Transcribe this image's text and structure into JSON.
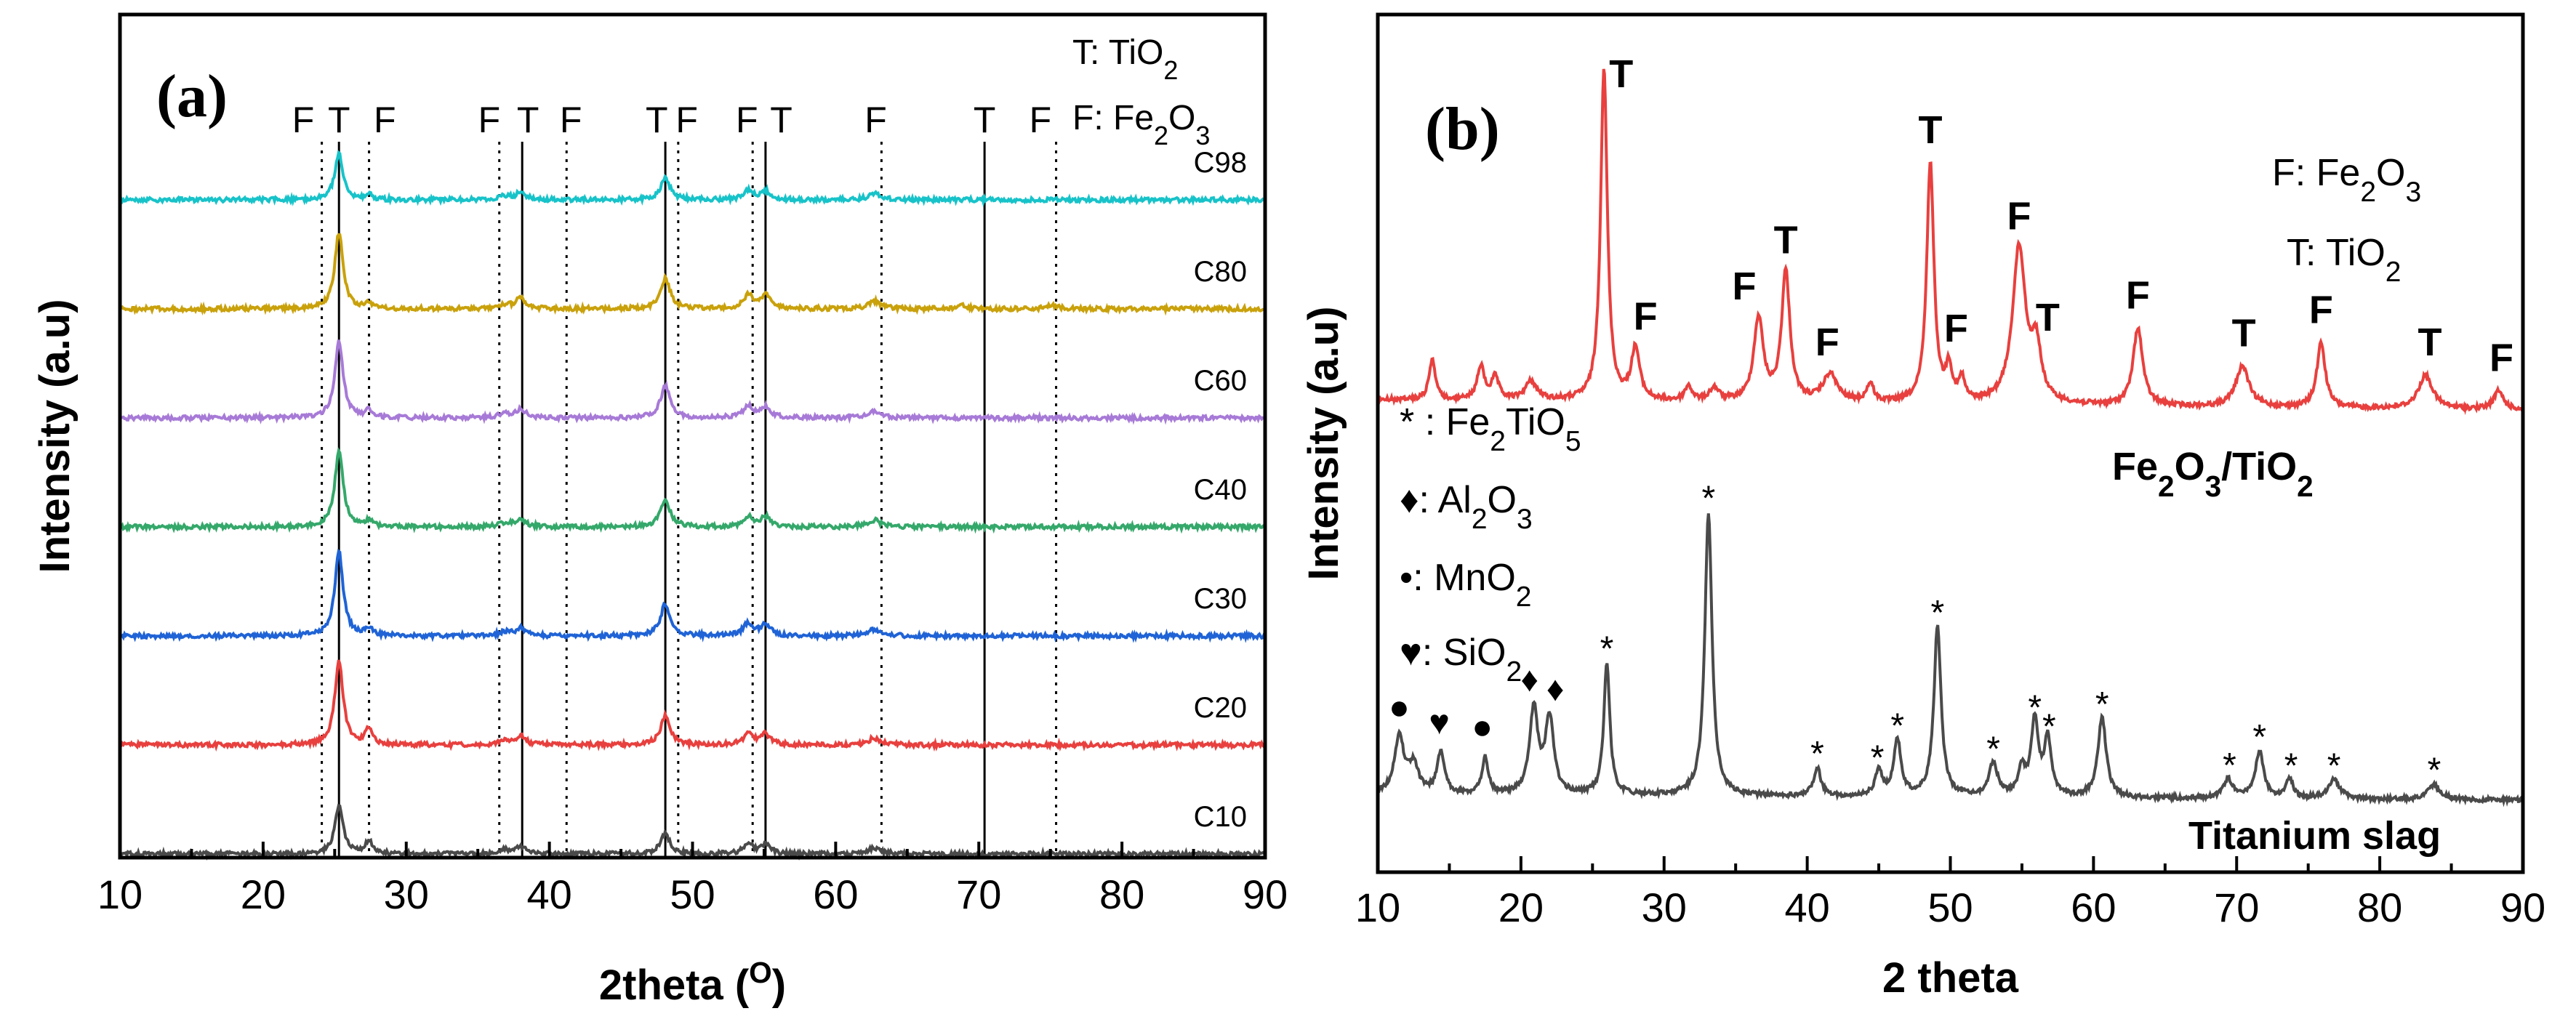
{
  "chart_data": [
    {
      "type": "line",
      "panel_label": "(a)",
      "xlabel": "2theta (",
      "xlabel_sup": "O",
      "xlabel_end": ")",
      "ylabel": "Intensity (a.u)",
      "xlim": [
        10,
        90
      ],
      "xticks": [
        10,
        20,
        30,
        40,
        50,
        60,
        70,
        80,
        90
      ],
      "legend": [
        {
          "text": "T: TiO",
          "sub": "2"
        },
        {
          "text": "F: Fe",
          "sub": "2",
          "text2": "O",
          "sub2": "3"
        }
      ],
      "reference_lines": [
        {
          "x": 24.1,
          "style": "dotted"
        },
        {
          "x": 25.3,
          "style": "solid"
        },
        {
          "x": 27.4,
          "style": "dotted"
        },
        {
          "x": 36.5,
          "style": "dotted"
        },
        {
          "x": 38.1,
          "style": "solid"
        },
        {
          "x": 41.2,
          "style": "dotted"
        },
        {
          "x": 48.1,
          "style": "solid"
        },
        {
          "x": 49.0,
          "style": "dotted"
        },
        {
          "x": 54.2,
          "style": "dotted"
        },
        {
          "x": 55.1,
          "style": "solid"
        },
        {
          "x": 63.2,
          "style": "dotted"
        },
        {
          "x": 70.4,
          "style": "solid"
        },
        {
          "x": 75.4,
          "style": "dotted"
        }
      ],
      "peak_labels": [
        {
          "x": 22.8,
          "text": "F"
        },
        {
          "x": 25.3,
          "text": "T"
        },
        {
          "x": 28.5,
          "text": "F"
        },
        {
          "x": 35.8,
          "text": "F"
        },
        {
          "x": 38.5,
          "text": "T"
        },
        {
          "x": 41.5,
          "text": "F"
        },
        {
          "x": 47.5,
          "text": "T"
        },
        {
          "x": 49.6,
          "text": "F"
        },
        {
          "x": 53.8,
          "text": "F"
        },
        {
          "x": 56.2,
          "text": "T"
        },
        {
          "x": 62.8,
          "text": "F"
        },
        {
          "x": 70.4,
          "text": "T"
        },
        {
          "x": 74.3,
          "text": "F"
        }
      ],
      "series": [
        {
          "name": "C98",
          "color": "#17c3c9",
          "baseline": 0.0,
          "peaks": [
            [
              25.3,
              60,
              0.35
            ],
            [
              27.4,
              6,
              0.3
            ],
            [
              36.9,
              5,
              0.5
            ],
            [
              38.0,
              9,
              0.4
            ],
            [
              48.1,
              28,
              0.4
            ],
            [
              53.9,
              12,
              0.4
            ],
            [
              55.1,
              11,
              0.4
            ],
            [
              62.7,
              8,
              0.5
            ]
          ]
        },
        {
          "name": "C80",
          "color": "#c9a10b",
          "baseline": 1.0,
          "peaks": [
            [
              25.3,
              100,
              0.35
            ],
            [
              27.4,
              6,
              0.3
            ],
            [
              36.9,
              5,
              0.5
            ],
            [
              38.0,
              14,
              0.4
            ],
            [
              48.1,
              40,
              0.4
            ],
            [
              53.9,
              18,
              0.4
            ],
            [
              55.1,
              17,
              0.4
            ],
            [
              62.7,
              10,
              0.5
            ],
            [
              68.8,
              4,
              0.5
            ],
            [
              75.1,
              4,
              0.5
            ]
          ]
        },
        {
          "name": "C60",
          "color": "#a77ad7",
          "baseline": 2.0,
          "peaks": [
            [
              25.3,
              100,
              0.35
            ],
            [
              27.4,
              9,
              0.3
            ],
            [
              36.9,
              5,
              0.5
            ],
            [
              38.0,
              11,
              0.4
            ],
            [
              48.1,
              42,
              0.4
            ],
            [
              53.9,
              15,
              0.4
            ],
            [
              55.1,
              14,
              0.4
            ],
            [
              62.7,
              9,
              0.5
            ]
          ]
        },
        {
          "name": "C40",
          "color": "#34a86a",
          "baseline": 3.0,
          "peaks": [
            [
              25.3,
              100,
              0.35
            ],
            [
              27.4,
              8,
              0.3
            ],
            [
              36.9,
              5,
              0.5
            ],
            [
              38.0,
              10,
              0.4
            ],
            [
              48.1,
              36,
              0.4
            ],
            [
              53.9,
              14,
              0.4
            ],
            [
              55.1,
              13,
              0.4
            ],
            [
              62.7,
              9,
              0.5
            ]
          ]
        },
        {
          "name": "C30",
          "color": "#1f63d6",
          "baseline": 4.0,
          "peaks": [
            [
              25.3,
              110,
              0.35
            ],
            [
              27.4,
              10,
              0.3
            ],
            [
              36.9,
              5,
              0.5
            ],
            [
              38.0,
              10,
              0.4
            ],
            [
              48.1,
              42,
              0.4
            ],
            [
              53.9,
              17,
              0.4
            ],
            [
              55.1,
              15,
              0.4
            ],
            [
              62.7,
              9,
              0.5
            ]
          ]
        },
        {
          "name": "C20",
          "color": "#e8403e",
          "baseline": 5.0,
          "peaks": [
            [
              25.3,
              110,
              0.35
            ],
            [
              27.4,
              22,
              0.3
            ],
            [
              36.9,
              5,
              0.5
            ],
            [
              38.0,
              11,
              0.4
            ],
            [
              48.1,
              38,
              0.4
            ],
            [
              53.9,
              15,
              0.4
            ],
            [
              55.1,
              14,
              0.4
            ],
            [
              62.7,
              9,
              0.5
            ]
          ]
        },
        {
          "name": "C10",
          "color": "#4a4a4a",
          "baseline": 6.0,
          "peaks": [
            [
              25.3,
              62,
              0.35
            ],
            [
              27.4,
              18,
              0.3
            ],
            [
              36.9,
              5,
              0.5
            ],
            [
              38.0,
              9,
              0.4
            ],
            [
              48.1,
              26,
              0.4
            ],
            [
              53.9,
              13,
              0.4
            ],
            [
              55.1,
              12,
              0.4
            ],
            [
              62.7,
              8,
              0.5
            ]
          ]
        }
      ]
    },
    {
      "type": "line",
      "panel_label": "(b)",
      "xlabel": "2 theta",
      "ylabel": "Intensity (a.u)",
      "xlim": [
        10,
        90
      ],
      "xticks": [
        10,
        20,
        30,
        40,
        50,
        60,
        70,
        80,
        90
      ],
      "legend_top": [
        {
          "text": "F: Fe",
          "sub": "2",
          "text2": "O",
          "sub2": "3"
        },
        {
          "text": "T: TiO",
          "sub": "2"
        }
      ],
      "legend_bottom": [
        {
          "sym": "*",
          "text": " : Fe",
          "sub": "2",
          "text2": "TiO",
          "sub2": "5"
        },
        {
          "sym": "♦",
          "text": ": Al",
          "sub": "2",
          "text2": "O",
          "sub2": "3"
        },
        {
          "sym": "•",
          "text": ": MnO",
          "sub": "2"
        },
        {
          "sym": "♥",
          "text": ": SiO",
          "sub": "2"
        }
      ],
      "series": [
        {
          "name": "Fe2O3/TiO2",
          "label": "Fe",
          "label_sub1": "2",
          "label_mid": "O",
          "label_sub2": "3",
          "label_end": "/TiO",
          "label_sub3": "2",
          "color": "#e8403e",
          "peaks": [
            [
              13.8,
              22,
              0.25
            ],
            [
              17.2,
              18,
              0.3
            ],
            [
              18.2,
              12,
              0.3
            ],
            [
              20.7,
              10,
              0.5
            ],
            [
              25.8,
              180,
              0.28
            ],
            [
              28.0,
              28,
              0.35
            ],
            [
              31.7,
              8,
              0.3
            ],
            [
              33.5,
              7,
              0.4
            ],
            [
              36.6,
              45,
              0.4
            ],
            [
              38.5,
              70,
              0.35
            ],
            [
              41.6,
              15,
              0.6
            ],
            [
              44.4,
              10,
              0.3
            ],
            [
              48.6,
              130,
              0.3
            ],
            [
              49.9,
              18,
              0.25
            ],
            [
              50.8,
              12,
              0.25
            ],
            [
              54.8,
              84,
              0.55
            ],
            [
              56.0,
              28,
              0.4
            ],
            [
              63.1,
              42,
              0.4
            ],
            [
              70.4,
              22,
              0.55
            ],
            [
              75.9,
              35,
              0.35
            ],
            [
              83.2,
              18,
              0.6
            ],
            [
              88.3,
              10,
              0.4
            ]
          ],
          "peak_labels": [
            {
              "x": 27.0,
              "text": "T"
            },
            {
              "x": 28.7,
              "text": "F"
            },
            {
              "x": 35.6,
              "text": "F"
            },
            {
              "x": 38.5,
              "text": "T"
            },
            {
              "x": 41.4,
              "text": "F"
            },
            {
              "x": 48.6,
              "text": "T"
            },
            {
              "x": 50.4,
              "text": "F"
            },
            {
              "x": 54.8,
              "text": "F"
            },
            {
              "x": 56.8,
              "text": "T"
            },
            {
              "x": 63.1,
              "text": "F"
            },
            {
              "x": 70.5,
              "text": "T"
            },
            {
              "x": 75.9,
              "text": "F"
            },
            {
              "x": 83.5,
              "text": "T"
            },
            {
              "x": 88.5,
              "text": "F"
            }
          ]
        },
        {
          "name": "Titanium slag",
          "label": "Titanium slag",
          "color": "#4a4a4a",
          "peaks": [
            [
              11.5,
              30,
              0.4
            ],
            [
              12.5,
              15,
              0.4
            ],
            [
              14.4,
              22,
              0.3
            ],
            [
              17.5,
              20,
              0.25
            ],
            [
              20.9,
              45,
              0.35
            ],
            [
              22.0,
              40,
              0.35
            ],
            [
              26.0,
              70,
              0.25
            ],
            [
              33.1,
              150,
              0.3
            ],
            [
              40.7,
              15,
              0.3
            ],
            [
              45.0,
              13,
              0.3
            ],
            [
              46.3,
              30,
              0.3
            ],
            [
              49.1,
              90,
              0.3
            ],
            [
              53.0,
              18,
              0.35
            ],
            [
              55.0,
              14,
              0.3
            ],
            [
              55.9,
              40,
              0.3
            ],
            [
              56.8,
              30,
              0.3
            ],
            [
              60.6,
              42,
              0.35
            ],
            [
              69.4,
              10,
              0.4
            ],
            [
              71.6,
              25,
              0.35
            ],
            [
              73.7,
              10,
              0.3
            ],
            [
              76.8,
              10,
              0.5
            ],
            [
              83.8,
              8,
              0.5
            ]
          ],
          "peak_markers": [
            {
              "x": 11.5,
              "sym": "●"
            },
            {
              "x": 14.3,
              "sym": "♥"
            },
            {
              "x": 17.3,
              "sym": "●"
            },
            {
              "x": 20.6,
              "sym": "♦"
            },
            {
              "x": 22.4,
              "sym": "♦"
            },
            {
              "x": 26.0,
              "sym": "*"
            },
            {
              "x": 33.1,
              "sym": "*"
            },
            {
              "x": 40.7,
              "sym": "*"
            },
            {
              "x": 44.9,
              "sym": "*"
            },
            {
              "x": 46.3,
              "sym": "*"
            },
            {
              "x": 49.1,
              "sym": "*"
            },
            {
              "x": 53.0,
              "sym": "*"
            },
            {
              "x": 55.9,
              "sym": "*"
            },
            {
              "x": 56.9,
              "sym": "*"
            },
            {
              "x": 60.6,
              "sym": "*"
            },
            {
              "x": 69.5,
              "sym": "*"
            },
            {
              "x": 71.6,
              "sym": "*"
            },
            {
              "x": 73.8,
              "sym": "*"
            },
            {
              "x": 76.8,
              "sym": "*"
            },
            {
              "x": 83.8,
              "sym": "*"
            }
          ]
        }
      ]
    }
  ]
}
